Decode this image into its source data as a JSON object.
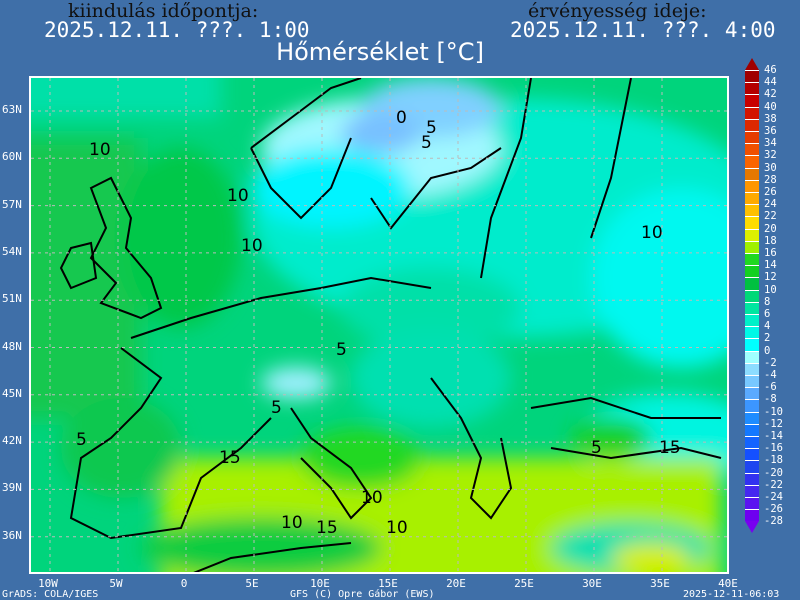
{
  "header": {
    "run_label": "kiindulás időpontja:",
    "run_time": "2025.12.11. ???. 1:00",
    "valid_label": "érvényesség ideje:",
    "valid_time": "2025.12.11. ???. 4:00",
    "title": "Hőmérséklet [°C]"
  },
  "map": {
    "latitude_labels": [
      "63N",
      "60N",
      "57N",
      "54N",
      "51N",
      "48N",
      "45N",
      "42N",
      "39N",
      "36N"
    ],
    "longitude_labels": [
      "10W",
      "5W",
      "0",
      "5E",
      "10E",
      "15E",
      "20E",
      "25E",
      "30E",
      "35E",
      "40E"
    ],
    "contour_labels": [
      "10",
      "10",
      "10",
      "5",
      "0",
      "5",
      "5",
      "5",
      "5",
      "10",
      "15",
      "15",
      "15",
      "10",
      "10",
      "10",
      "5"
    ],
    "colors": {
      "background": "#3f6fa8",
      "sea_mild": "#00d47c",
      "cold": "#a8f8ff",
      "warm": "#a8f000"
    }
  },
  "legend": {
    "labels": [
      "46",
      "44",
      "42",
      "40",
      "38",
      "36",
      "34",
      "32",
      "30",
      "28",
      "26",
      "24",
      "22",
      "20",
      "18",
      "16",
      "14",
      "12",
      "10",
      "8",
      "6",
      "4",
      "2",
      "0",
      "-2",
      "-4",
      "-6",
      "-8",
      "-10",
      "-12",
      "-14",
      "-16",
      "-18",
      "-20",
      "-22",
      "-24",
      "-26",
      "-28"
    ],
    "colors": [
      "#a00000",
      "#b40000",
      "#c80000",
      "#d21400",
      "#dc2800",
      "#e63c00",
      "#f05000",
      "#fa6400",
      "#e67800",
      "#ff9600",
      "#ffaa00",
      "#ffc000",
      "#ffdc00",
      "#dcf000",
      "#a0f000",
      "#20d820",
      "#14d020",
      "#00c040",
      "#00d878",
      "#00e6a0",
      "#00f0c8",
      "#00f8e6",
      "#00ffff",
      "#a0ffff",
      "#8cdcff",
      "#78c8ff",
      "#5aaaff",
      "#3c96ff",
      "#1e8cff",
      "#1478ff",
      "#1464ff",
      "#1450ff",
      "#1e46f0",
      "#3232f0",
      "#4628f0",
      "#5a14f0",
      "#6e00f0"
    ]
  },
  "footer": {
    "left": "GrADS: COLA/IGES",
    "center": "GFS (C) Opre Gábor (EWS)",
    "right": "2025-12-11-06:03"
  }
}
